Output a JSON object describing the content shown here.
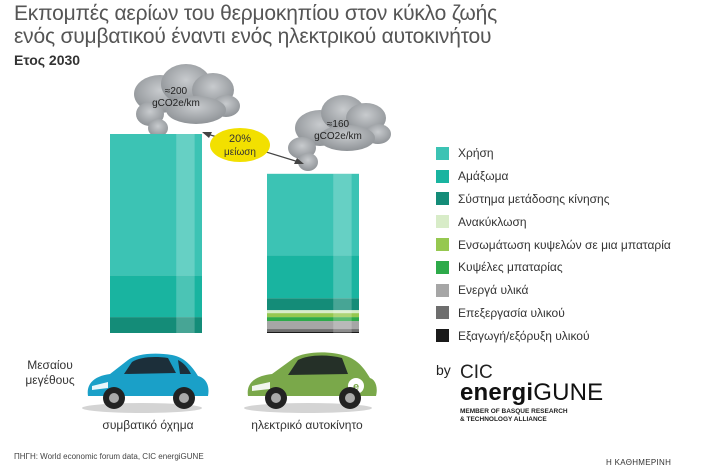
{
  "header": {
    "title_line1": "Εκπομπές αερίων του θερμοκηπίου στον κύκλο ζωής",
    "title_line2": "ενός συμβατικού έναντι ενός ηλεκτρικού αυτοκινήτου",
    "subtitle": "Ετος 2030"
  },
  "chart_data": {
    "type": "bar",
    "stacked": true,
    "categories": [
      "συμβατικό όχημα",
      "ηλεκτρικό αυτοκίνητο"
    ],
    "y_unit": "gCO2e/km",
    "series": [
      {
        "name": "Εξαγωγή/εξόρυξη υλικού",
        "color": "#1a1a1a",
        "values": [
          0,
          1
        ]
      },
      {
        "name": "Επεξεργασία υλικού",
        "color": "#6e6e6e",
        "values": [
          0,
          3
        ]
      },
      {
        "name": "Ενεργά υλικά",
        "color": "#a6a6a6",
        "values": [
          0,
          8
        ]
      },
      {
        "name": "Κυψέλες μπαταρίας",
        "color": "#2daa4a",
        "values": [
          0,
          4
        ]
      },
      {
        "name": "Ενσωμάτωση κυψελών σε μια μπαταρία",
        "color": "#96c850",
        "values": [
          0,
          4
        ]
      },
      {
        "name": "Ανακύκλωση",
        "color": "#d8ecc8",
        "values": [
          0,
          3
        ]
      },
      {
        "name": "Σύστημα μετάδοσης κίνησης",
        "color": "#148c78",
        "values": [
          16,
          12
        ]
      },
      {
        "name": "Αμάξωμα",
        "color": "#19b4a0",
        "values": [
          42,
          43
        ]
      },
      {
        "name": "Χρήση",
        "color": "#3cc3b4",
        "values": [
          142,
          82
        ]
      }
    ],
    "totals": [
      {
        "value_label": "≈200",
        "unit": "gCO2e/km"
      },
      {
        "value_label": "≈160",
        "unit": "gCO2e/km"
      }
    ],
    "annotation": {
      "line1": "20%",
      "line2": "μείωση"
    }
  },
  "car_labels": {
    "left_side": [
      "Μεσαίου",
      "μεγέθους"
    ],
    "conventional": "συμβατικό όχημα",
    "electric": "ηλεκτρικό αυτοκίνητο"
  },
  "logo": {
    "by": "by",
    "cic": "CIC",
    "word_bold": "energi",
    "word_light": "GUNE",
    "tagline_line1": "MEMBER OF BASQUE RESEARCH",
    "tagline_line2": "& TECHNOLOGY ALLIANCE"
  },
  "source": "ΠΗΓΗ: World economic forum data, CIC energiGUNE",
  "brand": "Η ΚΑΘΗΜΕΡΙΝΗ",
  "colors": {
    "accent_bubble": "#f2e000",
    "smoke": "#a8acb0"
  }
}
